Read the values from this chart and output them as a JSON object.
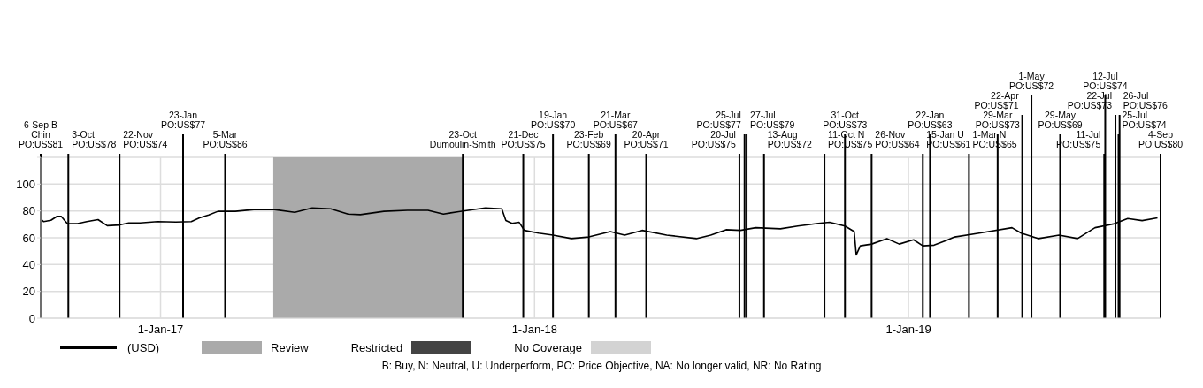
{
  "chart_data": {
    "type": "line",
    "x": [
      "2016-09-06",
      "2016-09-09",
      "2016-09-16",
      "2016-09-22",
      "2016-09-26",
      "2016-10-02",
      "2016-10-12",
      "2016-10-21",
      "2016-11-01",
      "2016-11-10",
      "2016-11-22",
      "2016-12-01",
      "2016-12-12",
      "2016-12-29",
      "2017-01-16",
      "2017-01-31",
      "2017-02-08",
      "2017-02-17",
      "2017-02-26",
      "2017-03-15",
      "2017-04-02",
      "2017-04-22",
      "2017-05-12",
      "2017-05-29",
      "2017-06-16",
      "2017-07-03",
      "2017-07-15",
      "2017-08-07",
      "2017-08-30",
      "2017-09-19",
      "2017-10-04",
      "2017-10-19",
      "2017-11-14",
      "2017-11-30",
      "2017-12-04",
      "2017-12-10",
      "2017-12-17",
      "2017-12-22",
      "2018-01-05",
      "2018-01-19",
      "2018-02-06",
      "2018-02-23",
      "2018-03-16",
      "2018-03-30",
      "2018-04-16",
      "2018-05-10",
      "2018-06-08",
      "2018-06-22",
      "2018-07-07",
      "2018-07-21",
      "2018-08-05",
      "2018-08-29",
      "2018-09-15",
      "2018-10-05",
      "2018-10-16",
      "2018-10-31",
      "2018-11-09",
      "2018-11-11",
      "2018-11-15",
      "2018-11-26",
      "2018-12-11",
      "2018-12-23",
      "2019-01-06",
      "2019-01-15",
      "2019-01-26",
      "2019-02-07",
      "2019-02-15",
      "2019-03-11",
      "2019-04-12",
      "2019-04-21",
      "2019-05-08",
      "2019-05-28",
      "2019-06-15",
      "2019-07-02",
      "2019-07-20",
      "2019-08-03",
      "2019-08-17",
      "2019-09-01"
    ],
    "series": [
      {
        "name": "(USD)",
        "color": "#000000",
        "values": [
          74,
          72,
          73,
          76,
          76,
          70.6,
          70.5,
          72,
          73.5,
          69,
          69.5,
          71,
          71,
          72,
          71.7,
          72,
          74.8,
          77,
          79.7,
          79.7,
          81,
          81,
          79,
          82.3,
          81.6,
          77.6,
          77.2,
          79.7,
          80.4,
          80.4,
          77.6,
          79.5,
          82.3,
          81.6,
          72.8,
          70.7,
          71.5,
          65.5,
          63.5,
          62,
          59.4,
          60.6,
          64.6,
          62,
          65.5,
          62,
          59.4,
          62,
          66,
          65.5,
          67.5,
          66.7,
          68.7,
          70.7,
          71.5,
          68.7,
          64.6,
          47.2,
          54,
          55.3,
          59.4,
          55.3,
          58.5,
          54,
          54.5,
          58,
          60.6,
          63.5,
          67.5,
          63.5,
          59.4,
          62,
          59.4,
          67.5,
          70.3,
          74.3,
          72.8,
          74.8
        ]
      }
    ],
    "xlim": [
      "2016-09-06",
      "2019-09-04"
    ],
    "xticks": [
      {
        "value": "2017-01-01",
        "label": "1-Jan-17"
      },
      {
        "value": "2018-01-01",
        "label": "1-Jan-18"
      },
      {
        "value": "2019-01-01",
        "label": "1-Jan-19"
      }
    ],
    "ylim": [
      0,
      120
    ],
    "yticks": [
      0,
      20,
      40,
      60,
      80,
      100,
      {
        "value": 120,
        "label": null
      }
    ],
    "grid": true,
    "legend": "bottom left",
    "bands": [
      {
        "axis": "x",
        "from": "2017-04-21",
        "to": "2017-10-23",
        "label": "Review",
        "color": "#aaaaaa"
      }
    ],
    "ref_lines": [
      {
        "axis": "x",
        "value": "2016-09-06",
        "label": "6-Sep B\nChin\nPO:US$81"
      },
      {
        "axis": "x",
        "value": "2016-10-03",
        "label": "3-Oct\nPO:US$78"
      },
      {
        "axis": "x",
        "value": "2016-11-22",
        "label": "22-Nov\nPO:US$74"
      },
      {
        "axis": "x",
        "value": "2017-01-23",
        "label": "23-Jan\nPO:US$77"
      },
      {
        "axis": "x",
        "value": "2017-03-05",
        "label": "5-Mar\nPO:US$86"
      },
      {
        "axis": "x",
        "value": "2017-10-23",
        "label": "23-Oct\nDumoulin-Smith"
      },
      {
        "axis": "x",
        "value": "2017-12-21",
        "label": "21-Dec\nPO:US$75"
      },
      {
        "axis": "x",
        "value": "2018-01-19",
        "label": "19-Jan\nPO:US$70"
      },
      {
        "axis": "x",
        "value": "2018-02-23",
        "label": "23-Feb\nPO:US$69"
      },
      {
        "axis": "x",
        "value": "2018-03-21",
        "label": "21-Mar\nPO:US$67"
      },
      {
        "axis": "x",
        "value": "2018-04-20",
        "label": "20-Apr\nPO:US$71"
      },
      {
        "axis": "x",
        "value": "2018-07-20",
        "label": "20-Jul\nPO:US$75"
      },
      {
        "axis": "x",
        "value": "2018-07-25",
        "label": "25-Jul\nPO:US$77"
      },
      {
        "axis": "x",
        "value": "2018-07-27",
        "label": "27-Jul\nPO:US$79"
      },
      {
        "axis": "x",
        "value": "2018-08-13",
        "label": "13-Aug\nPO:US$72"
      },
      {
        "axis": "x",
        "value": "2018-10-11",
        "label": "11-Oct N\nPO:US$75"
      },
      {
        "axis": "x",
        "value": "2018-10-31",
        "label": "31-Oct\nPO:US$73"
      },
      {
        "axis": "x",
        "value": "2018-11-26",
        "label": "26-Nov\nPO:US$64"
      },
      {
        "axis": "x",
        "value": "2019-01-15",
        "label": "15-Jan U\nPO:US$61"
      },
      {
        "axis": "x",
        "value": "2019-01-22",
        "label": "22-Jan\nPO:US$63"
      },
      {
        "axis": "x",
        "value": "2019-03-01",
        "label": "1-Mar N\nPO:US$65"
      },
      {
        "axis": "x",
        "value": "2019-03-29",
        "label": "29-Mar\nPO:US$73"
      },
      {
        "axis": "x",
        "value": "2019-04-22",
        "label": "22-Apr\nPO:US$71"
      },
      {
        "axis": "x",
        "value": "2019-05-01",
        "label": "1-May\nPO:US$72"
      },
      {
        "axis": "x",
        "value": "2019-05-29",
        "label": "29-May\nPO:US$69"
      },
      {
        "axis": "x",
        "value": "2019-07-11",
        "label": "11-Jul\nPO:US$75"
      },
      {
        "axis": "x",
        "value": "2019-07-12",
        "label": "12-Jul\nPO:US$74"
      },
      {
        "axis": "x",
        "value": "2019-07-22",
        "label": "22-Jul\nPO:US$73"
      },
      {
        "axis": "x",
        "value": "2019-07-25",
        "label": "25-Jul\nPO:US$74"
      },
      {
        "axis": "x",
        "value": "2019-07-26",
        "label": "26-Jul\nPO:US$76"
      },
      {
        "axis": "x",
        "value": "2019-09-04",
        "label": "4-Sep\nPO:US$80"
      }
    ],
    "annotations": [
      "Restricted",
      "No Coverage",
      "B: Buy, N: Neutral, U: Underperform, PO: Price Objective, NA: No longer valid, NR: No Rating"
    ]
  }
}
